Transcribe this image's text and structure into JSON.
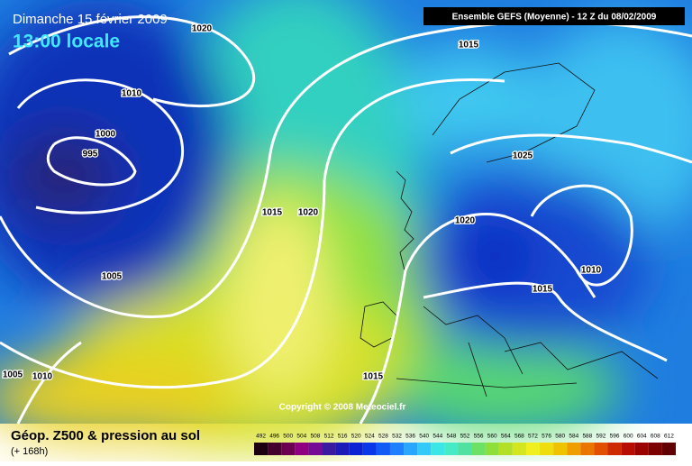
{
  "header": {
    "date": "Dimanche 15 février 2009",
    "local_time": "13:00 locale",
    "model": "Ensemble GEFS (Moyenne)  - 12 Z du 08/02/2009"
  },
  "isobar_labels": [
    1020,
    1015,
    1010,
    1000,
    995,
    1015,
    1020,
    1025,
    1020,
    1010,
    1015,
    1005,
    1005,
    1010,
    1015
  ],
  "copyright": "Copyright © 2008 Meteociel.fr",
  "footer": {
    "title": "Géop. Z500 & pression au sol",
    "lead": "(+ 168h)"
  },
  "legend": [
    492,
    496,
    500,
    504,
    508,
    512,
    516,
    520,
    524,
    528,
    532,
    536,
    540,
    544,
    548,
    552,
    556,
    560,
    564,
    568,
    572,
    576,
    580,
    584,
    588,
    592,
    596,
    600,
    604,
    608,
    612
  ]
}
